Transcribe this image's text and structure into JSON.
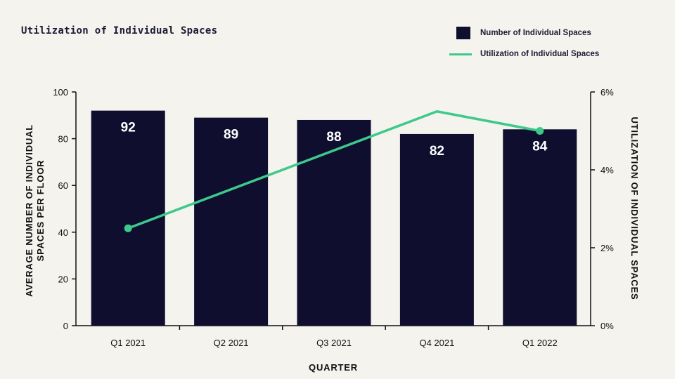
{
  "chart_data": {
    "type": "bar",
    "title": "Utilization of Individual Spaces",
    "categories": [
      "Q1 2021",
      "Q2 2021",
      "Q3 2021",
      "Q4 2021",
      "Q1 2022"
    ],
    "series": [
      {
        "name": "Number of Individual Spaces",
        "type": "bar",
        "axis": "left",
        "values": [
          92,
          89,
          88,
          82,
          84
        ],
        "color": "#0f0e2f"
      },
      {
        "name": "Utilization of Individual Spaces",
        "type": "line",
        "axis": "right",
        "values": [
          2.5,
          3.5,
          4.5,
          5.5,
          5.0
        ],
        "color": "#3ec98a"
      }
    ],
    "xlabel": "QUARTER",
    "ylabel_lines": [
      "AVERAGE NUMBER OF INDIVIDUAL",
      "SPACES PER FLOOR"
    ],
    "y2label": "UTILIZATION OF INDIVIDUAL SPACES",
    "ylim": [
      0,
      100
    ],
    "yticks": [
      "0",
      "20",
      "40",
      "60",
      "80",
      "100"
    ],
    "y2lim": [
      0,
      6
    ],
    "y2ticks": [
      "0%",
      "2%",
      "4%",
      "6%"
    ],
    "grid": false,
    "legend_position": "top-right",
    "data_labels": [
      "92",
      "89",
      "88",
      "82",
      "84"
    ]
  }
}
